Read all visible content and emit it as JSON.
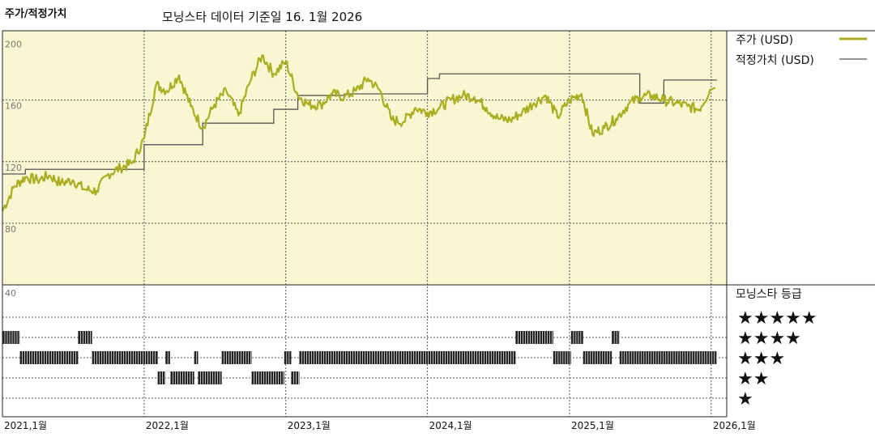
{
  "header": {
    "title": "주가/적정가치",
    "subtitle": "모닝스타 데이터 기준일 16. 1월 2026"
  },
  "colors": {
    "price_line": "#a9ad1f",
    "fair_value_line": "#555555",
    "upper_bg": "#f9f6d2"
  },
  "legend": {
    "price": "주가 (USD)",
    "fair_value": "적정가치 (USD)",
    "rating_title": "모닝스타 등급"
  },
  "chart_data": [
    {
      "type": "line",
      "xlabel": "",
      "ylabel": "",
      "x_tick_labels": [
        "2021,1월",
        "2022,1월",
        "2023,1월",
        "2024,1월",
        "2025,1월",
        "2026,1월"
      ],
      "y_tick_labels": [
        "200",
        "160",
        "120",
        "80"
      ],
      "ylim": [
        40,
        205
      ],
      "xlim": [
        "2021-01-01",
        "2026-01-16"
      ],
      "grid": true,
      "series": [
        {
          "name": "주가 (USD)",
          "x": [
            "2021-01",
            "2021-02",
            "2021-03",
            "2021-04",
            "2021-05",
            "2021-06",
            "2021-07",
            "2021-08",
            "2021-09",
            "2021-10",
            "2021-11",
            "2021-12",
            "2022-01",
            "2022-02",
            "2022-03",
            "2022-04",
            "2022-05",
            "2022-06",
            "2022-07",
            "2022-08",
            "2022-09",
            "2022-10",
            "2022-11",
            "2022-12",
            "2023-01",
            "2023-02",
            "2023-03",
            "2023-04",
            "2023-05",
            "2023-06",
            "2023-07",
            "2023-08",
            "2023-09",
            "2023-10",
            "2023-11",
            "2023-12",
            "2024-01",
            "2024-02",
            "2024-03",
            "2024-04",
            "2024-05",
            "2024-06",
            "2024-07",
            "2024-08",
            "2024-09",
            "2024-10",
            "2024-11",
            "2024-12",
            "2025-01",
            "2025-02",
            "2025-03",
            "2025-04",
            "2025-05",
            "2025-06",
            "2025-07",
            "2025-08",
            "2025-09",
            "2025-10",
            "2025-11",
            "2025-12",
            "2026-01"
          ],
          "values": [
            88,
            104,
            110,
            108,
            111,
            106,
            108,
            102,
            101,
            112,
            116,
            119,
            135,
            170,
            166,
            176,
            156,
            142,
            157,
            166,
            150,
            172,
            189,
            177,
            185,
            163,
            157,
            157,
            164,
            162,
            166,
            174,
            166,
            147,
            146,
            155,
            152,
            155,
            160,
            163,
            162,
            155,
            148,
            147,
            152,
            158,
            163,
            149,
            160,
            164,
            138,
            142,
            148,
            157,
            162,
            163,
            160,
            158,
            156,
            154,
            168
          ]
        },
        {
          "name": "적정가치 (USD)",
          "x": [
            "2021-01",
            "2021-03",
            "2021-09",
            "2022-01",
            "2022-06",
            "2022-12",
            "2023-02",
            "2023-06",
            "2024-01",
            "2024-02",
            "2024-12",
            "2025-02",
            "2025-07",
            "2025-09",
            "2026-01"
          ],
          "values": [
            112,
            115,
            115,
            131,
            145,
            154,
            163,
            164,
            174,
            177,
            177,
            177,
            158,
            173,
            173
          ]
        }
      ]
    },
    {
      "type": "heatmap",
      "title": "모닝스타 등급",
      "rows": [
        "★★★★★",
        "★★★★",
        "★★★",
        "★★",
        "★"
      ],
      "segments": [
        {
          "rating": 4,
          "from": "2021-01-01",
          "to": "2021-02-15"
        },
        {
          "rating": 3,
          "from": "2021-02-15",
          "to": "2021-07-15"
        },
        {
          "rating": 4,
          "from": "2021-07-15",
          "to": "2021-08-20"
        },
        {
          "rating": 3,
          "from": "2021-08-20",
          "to": "2022-02-05"
        },
        {
          "rating": 2,
          "from": "2022-02-05",
          "to": "2022-02-25"
        },
        {
          "rating": 3,
          "from": "2022-02-25",
          "to": "2022-03-10"
        },
        {
          "rating": 2,
          "from": "2022-03-10",
          "to": "2022-05-10"
        },
        {
          "rating": 3,
          "from": "2022-05-10",
          "to": "2022-05-20"
        },
        {
          "rating": 2,
          "from": "2022-05-20",
          "to": "2022-07-20"
        },
        {
          "rating": 3,
          "from": "2022-07-20",
          "to": "2022-10-05"
        },
        {
          "rating": 2,
          "from": "2022-10-05",
          "to": "2022-12-28"
        },
        {
          "rating": 3,
          "from": "2022-12-28",
          "to": "2023-01-15"
        },
        {
          "rating": 2,
          "from": "2023-01-15",
          "to": "2023-02-05"
        },
        {
          "rating": 3,
          "from": "2023-02-05",
          "to": "2024-08-15"
        },
        {
          "rating": 4,
          "from": "2024-08-15",
          "to": "2024-11-20"
        },
        {
          "rating": 3,
          "from": "2024-11-20",
          "to": "2025-01-05"
        },
        {
          "rating": 4,
          "from": "2025-01-05",
          "to": "2025-02-05"
        },
        {
          "rating": 3,
          "from": "2025-02-05",
          "to": "2025-04-20"
        },
        {
          "rating": 4,
          "from": "2025-04-20",
          "to": "2025-05-10"
        },
        {
          "rating": 3,
          "from": "2025-05-10",
          "to": "2026-01-16"
        }
      ]
    }
  ]
}
